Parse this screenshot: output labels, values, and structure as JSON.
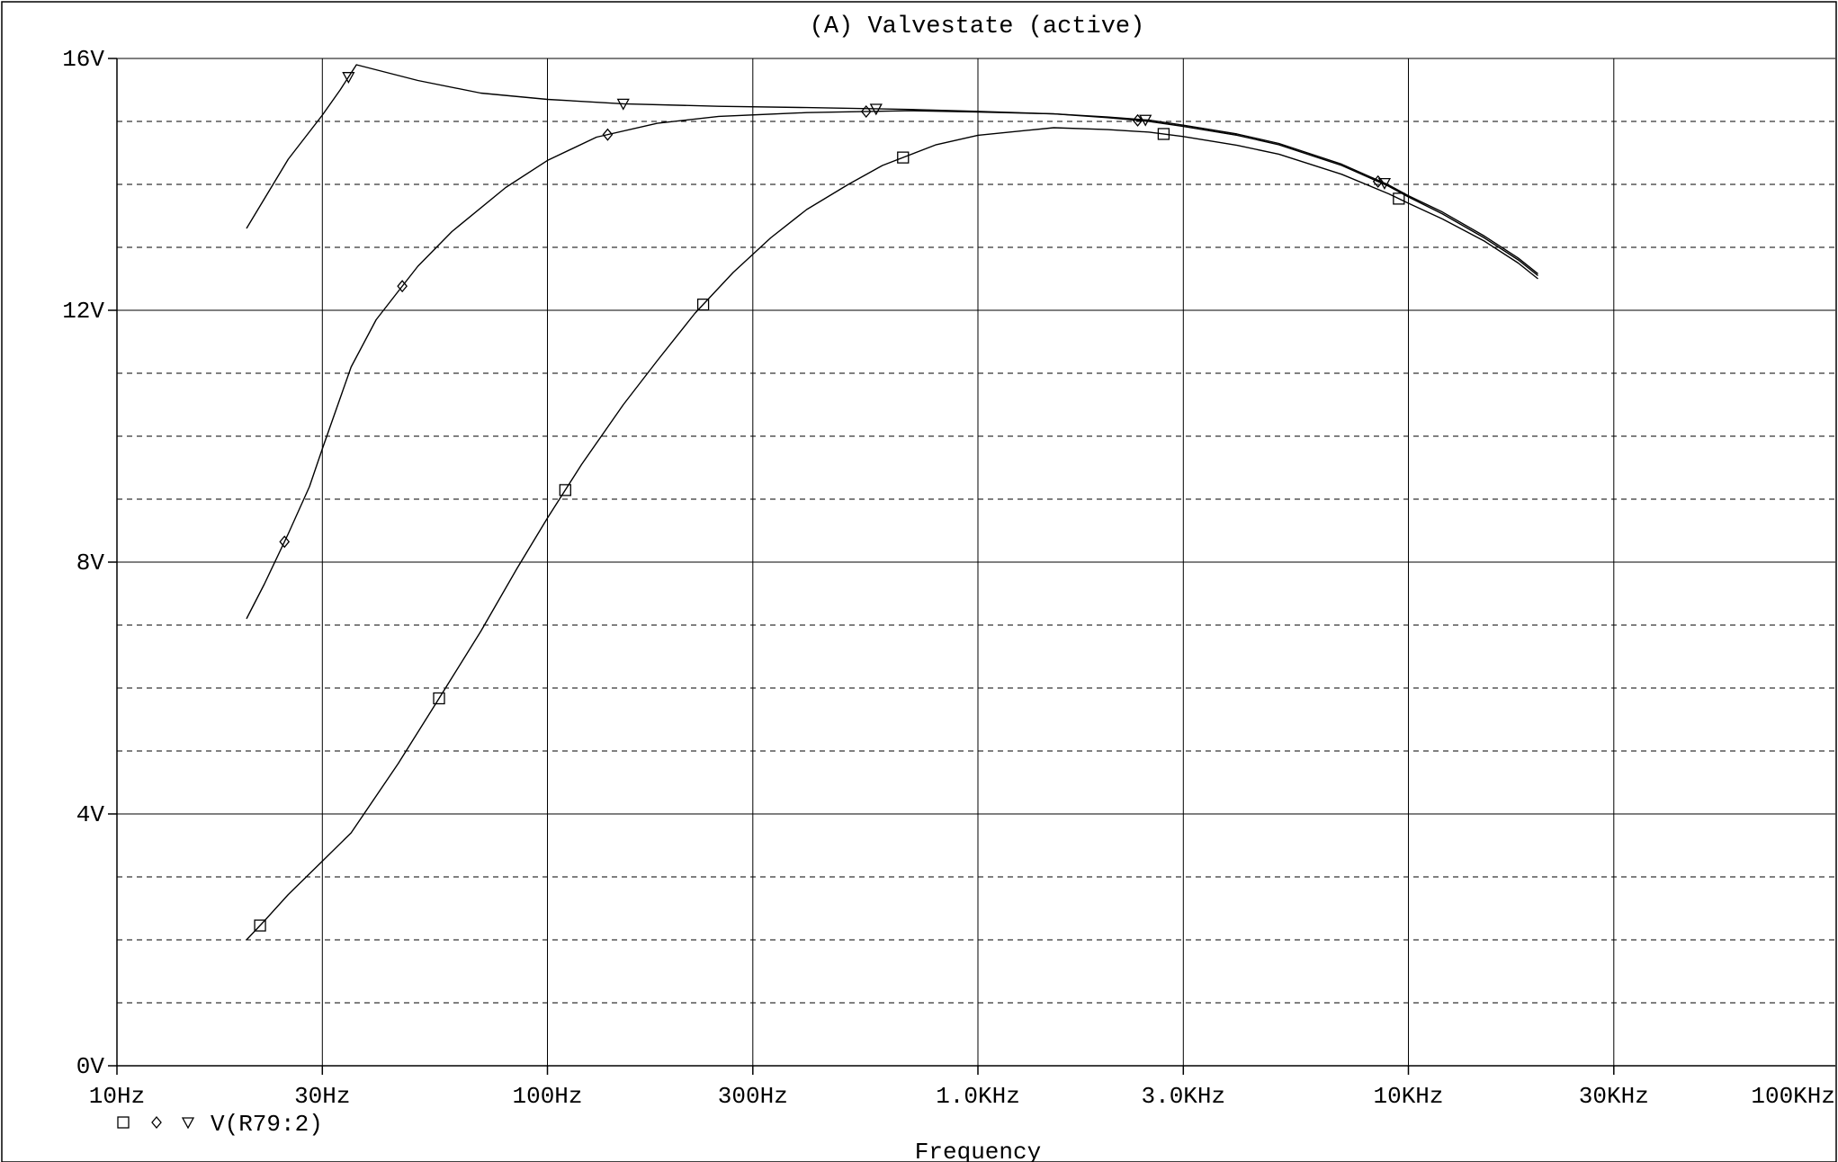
{
  "chart_data": {
    "type": "line",
    "title": "(A) Valvestate (active)",
    "xlabel": "Frequency",
    "ylabel": "",
    "x_scale": "log",
    "xlim": [
      10,
      100000
    ],
    "ylim": [
      0,
      16
    ],
    "x_ticks": [
      {
        "value": 10,
        "label": "10Hz"
      },
      {
        "value": 30,
        "label": "30Hz"
      },
      {
        "value": 100,
        "label": "100Hz"
      },
      {
        "value": 300,
        "label": "300Hz"
      },
      {
        "value": 1000,
        "label": "1.0KHz"
      },
      {
        "value": 3000,
        "label": "3.0KHz"
      },
      {
        "value": 10000,
        "label": "10KHz"
      },
      {
        "value": 30000,
        "label": "30KHz"
      },
      {
        "value": 100000,
        "label": "100KHz"
      }
    ],
    "y_ticks": [
      {
        "value": 0,
        "label": "0V"
      },
      {
        "value": 4,
        "label": "4V"
      },
      {
        "value": 8,
        "label": "8V"
      },
      {
        "value": 12,
        "label": "12V"
      },
      {
        "value": 16,
        "label": "16V"
      }
    ],
    "y_minor_dashed": [
      1,
      2,
      3,
      5,
      6,
      7,
      9,
      10,
      11,
      13,
      14,
      15
    ],
    "grid": true,
    "legend": {
      "placement": "bottom-left",
      "markers": [
        "square",
        "diamond",
        "triangle"
      ],
      "label": "V(R79:2)"
    },
    "series": [
      {
        "marker": "square",
        "points": [
          [
            20,
            2.0
          ],
          [
            22,
            2.3
          ],
          [
            25,
            2.72
          ],
          [
            30,
            3.25
          ],
          [
            35,
            3.7
          ],
          [
            45,
            4.8
          ],
          [
            55,
            5.75
          ],
          [
            70,
            6.9
          ],
          [
            85,
            7.9
          ],
          [
            100,
            8.7
          ],
          [
            120,
            9.55
          ],
          [
            150,
            10.5
          ],
          [
            180,
            11.2
          ],
          [
            220,
            11.95
          ],
          [
            270,
            12.6
          ],
          [
            330,
            13.15
          ],
          [
            400,
            13.6
          ],
          [
            500,
            14.0
          ],
          [
            600,
            14.3
          ],
          [
            800,
            14.63
          ],
          [
            1000,
            14.78
          ],
          [
            1500,
            14.9
          ],
          [
            2000,
            14.87
          ],
          [
            2500,
            14.83
          ],
          [
            3000,
            14.76
          ],
          [
            4000,
            14.62
          ],
          [
            5000,
            14.48
          ],
          [
            7000,
            14.16
          ],
          [
            9000,
            13.85
          ],
          [
            10000,
            13.7
          ],
          [
            12000,
            13.45
          ],
          [
            15000,
            13.1
          ],
          [
            18000,
            12.75
          ],
          [
            20000,
            12.5
          ]
        ],
        "markers_at": [
          21.5,
          56,
          110,
          230,
          670,
          2700,
          9500
        ]
      },
      {
        "marker": "diamond",
        "points": [
          [
            20,
            7.1
          ],
          [
            22,
            7.65
          ],
          [
            25,
            8.45
          ],
          [
            28,
            9.2
          ],
          [
            30,
            9.8
          ],
          [
            35,
            11.1
          ],
          [
            40,
            11.85
          ],
          [
            45,
            12.3
          ],
          [
            50,
            12.7
          ],
          [
            60,
            13.25
          ],
          [
            80,
            13.95
          ],
          [
            100,
            14.38
          ],
          [
            130,
            14.75
          ],
          [
            180,
            14.97
          ],
          [
            250,
            15.08
          ],
          [
            400,
            15.14
          ],
          [
            700,
            15.17
          ],
          [
            1000,
            15.15
          ],
          [
            1500,
            15.12
          ],
          [
            2000,
            15.06
          ],
          [
            2500,
            15.0
          ],
          [
            3000,
            14.92
          ],
          [
            4000,
            14.78
          ],
          [
            5000,
            14.63
          ],
          [
            7000,
            14.3
          ],
          [
            9000,
            13.97
          ],
          [
            10000,
            13.8
          ],
          [
            12000,
            13.53
          ],
          [
            15000,
            13.15
          ],
          [
            18000,
            12.8
          ],
          [
            20000,
            12.55
          ]
        ],
        "markers_at": [
          24.5,
          46,
          138,
          550,
          2350,
          8500
        ]
      },
      {
        "marker": "triangle",
        "points": [
          [
            20,
            13.3
          ],
          [
            25,
            14.4
          ],
          [
            30,
            15.1
          ],
          [
            33,
            15.5
          ],
          [
            36,
            15.9
          ],
          [
            50,
            15.65
          ],
          [
            70,
            15.45
          ],
          [
            100,
            15.35
          ],
          [
            150,
            15.28
          ],
          [
            250,
            15.24
          ],
          [
            400,
            15.22
          ],
          [
            700,
            15.19
          ],
          [
            1000,
            15.16
          ],
          [
            1500,
            15.12
          ],
          [
            2000,
            15.07
          ],
          [
            2500,
            15.02
          ],
          [
            3000,
            14.94
          ],
          [
            4000,
            14.8
          ],
          [
            5000,
            14.65
          ],
          [
            7000,
            14.32
          ],
          [
            9000,
            13.99
          ],
          [
            10000,
            13.82
          ],
          [
            12000,
            13.56
          ],
          [
            15000,
            13.18
          ],
          [
            18000,
            12.83
          ],
          [
            20000,
            12.58
          ]
        ],
        "markers_at": [
          34.5,
          150,
          580,
          2450,
          8800
        ]
      }
    ]
  }
}
